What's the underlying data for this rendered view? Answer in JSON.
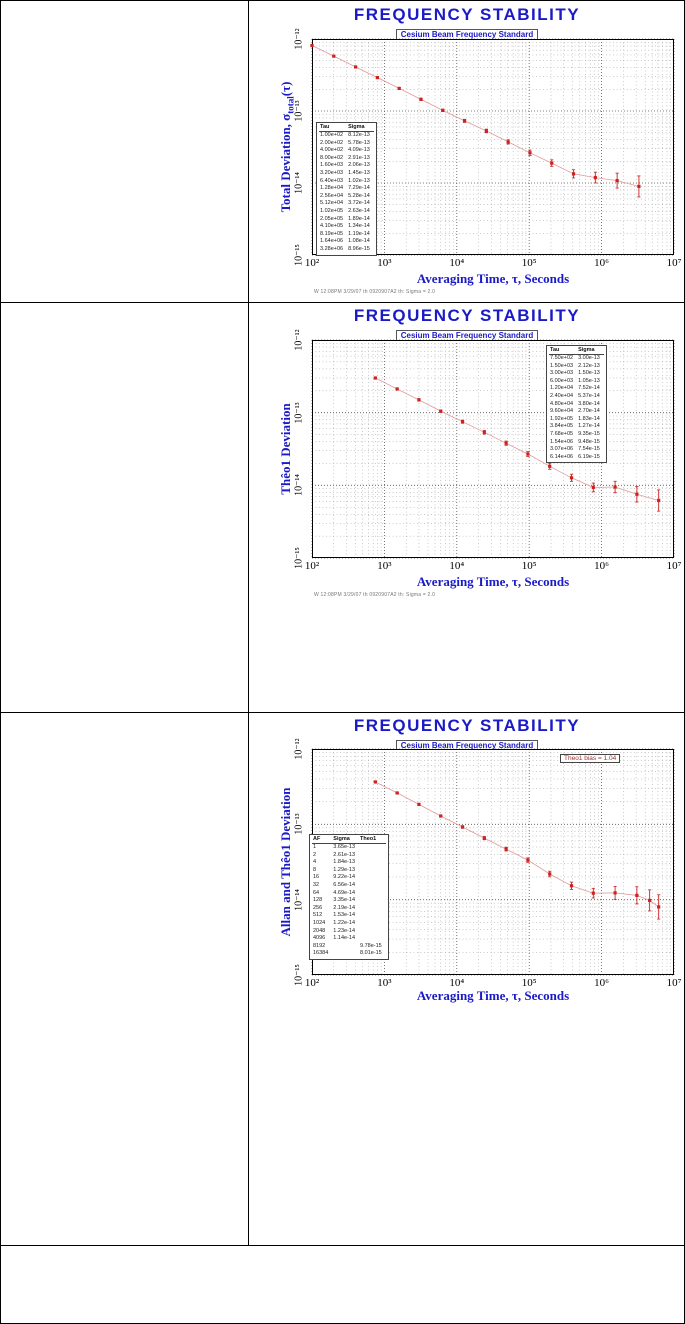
{
  "page": {
    "background": "#ffffff",
    "border_color": "#000000",
    "accent_blue": "#1a1ac6",
    "data_red": "#cc2222"
  },
  "chart_data": [
    {
      "type": "line",
      "scale": "log-log",
      "title": "FREQUENCY STABILITY",
      "subtitle": "Cesium Beam Frequency Standard",
      "xlabel": "Averaging Time, τ, Seconds",
      "ylabel": "Total Deviation, σtotal(τ)",
      "ylabel_parts": {
        "pre": "Total Deviation, σ",
        "sub": "total",
        "post": "(τ)"
      },
      "footer_note": "W 12:08PM 3/29/07  th 0920907A2   th: Sigma = 2.0",
      "x_range": [
        100,
        10000000
      ],
      "y_range": [
        1e-15,
        1e-12
      ],
      "grid": "log dotted",
      "legend": "none",
      "x_ticks": [
        {
          "label": "10²",
          "value": 100
        },
        {
          "label": "10³",
          "value": 1000
        },
        {
          "label": "10⁴",
          "value": 10000
        },
        {
          "label": "10⁵",
          "value": 100000
        },
        {
          "label": "10⁶",
          "value": 1000000
        },
        {
          "label": "10⁷",
          "value": 10000000
        }
      ],
      "y_ticks": [
        {
          "label": "10⁻¹²",
          "value": 1e-12
        },
        {
          "label": "10⁻¹³",
          "value": 1e-13
        },
        {
          "label": "10⁻¹⁴",
          "value": 1e-14
        },
        {
          "label": "10⁻¹⁵",
          "value": 1e-15
        }
      ],
      "series": [
        {
          "name": "Total deviation",
          "marker": "square",
          "color": "#cc2222",
          "line_color": "#e09a9a",
          "points": [
            {
              "tau": 100,
              "sigma": 8.12e-13,
              "err": 0.02
            },
            {
              "tau": 200,
              "sigma": 5.78e-13,
              "err": 0.02
            },
            {
              "tau": 400,
              "sigma": 4.09e-13,
              "err": 0.02
            },
            {
              "tau": 800,
              "sigma": 2.91e-13,
              "err": 0.03
            },
            {
              "tau": 1600,
              "sigma": 2.06e-13,
              "err": 0.03
            },
            {
              "tau": 3200,
              "sigma": 1.45e-13,
              "err": 0.04
            },
            {
              "tau": 6400,
              "sigma": 1.02e-13,
              "err": 0.04
            },
            {
              "tau": 12800,
              "sigma": 7.29e-14,
              "err": 0.05
            },
            {
              "tau": 25600,
              "sigma": 5.28e-14,
              "err": 0.06
            },
            {
              "tau": 51200,
              "sigma": 3.72e-14,
              "err": 0.07
            },
            {
              "tau": 102400,
              "sigma": 2.63e-14,
              "err": 0.09
            },
            {
              "tau": 204800,
              "sigma": 1.89e-14,
              "err": 0.11
            },
            {
              "tau": 409600,
              "sigma": 1.34e-14,
              "err": 0.14
            },
            {
              "tau": 819200,
              "sigma": 1.19e-14,
              "err": 0.19
            },
            {
              "tau": 1638400,
              "sigma": 1.08e-14,
              "err": 0.27
            },
            {
              "tau": 3276800,
              "sigma": 8.96e-15,
              "err": 0.4
            }
          ]
        }
      ],
      "table": {
        "headers": [
          "Tau",
          "Sigma"
        ],
        "rows": [
          [
            "1.00e+02",
            "8.12e-13"
          ],
          [
            "2.00e+02",
            "5.78e-13"
          ],
          [
            "4.00e+02",
            "4.09e-13"
          ],
          [
            "8.00e+02",
            "2.91e-13"
          ],
          [
            "1.60e+03",
            "2.06e-13"
          ],
          [
            "3.20e+03",
            "1.45e-13"
          ],
          [
            "6.40e+03",
            "1.02e-13"
          ],
          [
            "1.28e+04",
            "7.29e-14"
          ],
          [
            "2.56e+04",
            "5.28e-14"
          ],
          [
            "5.12e+04",
            "3.72e-14"
          ],
          [
            "1.02e+05",
            "2.63e-14"
          ],
          [
            "2.05e+05",
            "1.89e-14"
          ],
          [
            "4.10e+05",
            "1.34e-14"
          ],
          [
            "8.19e+05",
            "1.19e-14"
          ],
          [
            "1.64e+06",
            "1.08e-14"
          ],
          [
            "3.28e+06",
            "8.96e-15"
          ]
        ]
      }
    },
    {
      "type": "line",
      "scale": "log-log",
      "title": "FREQUENCY STABILITY",
      "subtitle": "Cesium Beam Frequency Standard",
      "xlabel": "Averaging Time, τ, Seconds",
      "ylabel": "Thêo1 Deviation",
      "footer_note": "W 12:08PM 3/29/07  th 0920907A2   th: Sigma = 2.0",
      "x_range": [
        100,
        10000000
      ],
      "y_range": [
        1e-15,
        1e-12
      ],
      "grid": "log dotted",
      "legend": "none",
      "x_ticks": [
        {
          "label": "10²",
          "value": 100
        },
        {
          "label": "10³",
          "value": 1000
        },
        {
          "label": "10⁴",
          "value": 10000
        },
        {
          "label": "10⁵",
          "value": 100000
        },
        {
          "label": "10⁶",
          "value": 1000000
        },
        {
          "label": "10⁷",
          "value": 10000000
        }
      ],
      "y_ticks": [
        {
          "label": "10⁻¹²",
          "value": 1e-12
        },
        {
          "label": "10⁻¹³",
          "value": 1e-13
        },
        {
          "label": "10⁻¹⁴",
          "value": 1e-14
        },
        {
          "label": "10⁻¹⁵",
          "value": 1e-15
        }
      ],
      "series": [
        {
          "name": "Theo1 deviation",
          "marker": "square",
          "color": "#cc2222",
          "line_color": "#e09a9a",
          "points": [
            {
              "tau": 750,
              "sigma": 3e-13,
              "err": 0.03
            },
            {
              "tau": 1500,
              "sigma": 2.12e-13,
              "err": 0.03
            },
            {
              "tau": 3000,
              "sigma": 1.5e-13,
              "err": 0.04
            },
            {
              "tau": 6000,
              "sigma": 1.05e-13,
              "err": 0.04
            },
            {
              "tau": 12000,
              "sigma": 7.52e-14,
              "err": 0.05
            },
            {
              "tau": 24000,
              "sigma": 5.37e-14,
              "err": 0.06
            },
            {
              "tau": 48000,
              "sigma": 3.8e-14,
              "err": 0.07
            },
            {
              "tau": 96000,
              "sigma": 2.7e-14,
              "err": 0.08
            },
            {
              "tau": 192000,
              "sigma": 1.83e-14,
              "err": 0.1
            },
            {
              "tau": 384000,
              "sigma": 1.27e-14,
              "err": 0.12
            },
            {
              "tau": 768000,
              "sigma": 9.35e-15,
              "err": 0.15
            },
            {
              "tau": 1536000,
              "sigma": 9.48e-15,
              "err": 0.2
            },
            {
              "tau": 3072000,
              "sigma": 7.54e-15,
              "err": 0.28
            },
            {
              "tau": 6144000,
              "sigma": 6.19e-15,
              "err": 0.4
            }
          ]
        }
      ],
      "table": {
        "headers": [
          "Tau",
          "Sigma"
        ],
        "rows": [
          [
            "7.50e+02",
            "3.00e-13"
          ],
          [
            "1.50e+03",
            "2.12e-13"
          ],
          [
            "3.00e+03",
            "1.50e-13"
          ],
          [
            "6.00e+03",
            "1.05e-13"
          ],
          [
            "1.20e+04",
            "7.52e-14"
          ],
          [
            "2.40e+04",
            "5.37e-14"
          ],
          [
            "4.80e+04",
            "3.80e-14"
          ],
          [
            "9.60e+04",
            "2.70e-14"
          ],
          [
            "1.92e+05",
            "1.83e-14"
          ],
          [
            "3.84e+05",
            "1.27e-14"
          ],
          [
            "7.68e+05",
            "9.35e-15"
          ],
          [
            "1.54e+06",
            "9.48e-15"
          ],
          [
            "3.07e+06",
            "7.54e-15"
          ],
          [
            "6.14e+06",
            "6.19e-15"
          ]
        ]
      }
    },
    {
      "type": "line",
      "scale": "log-log",
      "title": "FREQUENCY STABILITY",
      "subtitle": "Cesium Beam Frequency Standard",
      "xlabel": "Averaging Time, τ, Seconds",
      "ylabel": "Allan and Thêo1 Deviation",
      "annotation": "Theo1 bias = 1.04",
      "x_range": [
        100,
        10000000
      ],
      "y_range": [
        1e-15,
        1e-12
      ],
      "grid": "log dotted",
      "legend": "none",
      "x_ticks": [
        {
          "label": "10²",
          "value": 100
        },
        {
          "label": "10³",
          "value": 1000
        },
        {
          "label": "10⁴",
          "value": 10000
        },
        {
          "label": "10⁵",
          "value": 100000
        },
        {
          "label": "10⁶",
          "value": 1000000
        },
        {
          "label": "10⁷",
          "value": 10000000
        }
      ],
      "y_ticks": [
        {
          "label": "10⁻¹²",
          "value": 1e-12
        },
        {
          "label": "10⁻¹³",
          "value": 1e-13
        },
        {
          "label": "10⁻¹⁴",
          "value": 1e-14
        },
        {
          "label": "10⁻¹⁵",
          "value": 1e-15
        }
      ],
      "series": [
        {
          "name": "Allan and Theo1 deviation",
          "marker": "square",
          "color": "#cc2222",
          "line_color": "#e09a9a",
          "points": [
            {
              "tau": 750,
              "sigma": 3.65e-13,
              "err": 0.02
            },
            {
              "tau": 1500,
              "sigma": 2.61e-13,
              "err": 0.02
            },
            {
              "tau": 3000,
              "sigma": 1.84e-13,
              "err": 0.03
            },
            {
              "tau": 6000,
              "sigma": 1.29e-13,
              "err": 0.03
            },
            {
              "tau": 12000,
              "sigma": 9.22e-14,
              "err": 0.04
            },
            {
              "tau": 24000,
              "sigma": 6.56e-14,
              "err": 0.05
            },
            {
              "tau": 48000,
              "sigma": 4.69e-14,
              "err": 0.06
            },
            {
              "tau": 96000,
              "sigma": 3.35e-14,
              "err": 0.07
            },
            {
              "tau": 192000,
              "sigma": 2.19e-14,
              "err": 0.09
            },
            {
              "tau": 384000,
              "sigma": 1.53e-14,
              "err": 0.12
            },
            {
              "tau": 768000,
              "sigma": 1.22e-14,
              "err": 0.16
            },
            {
              "tau": 1536000,
              "sigma": 1.23e-14,
              "err": 0.22
            },
            {
              "tau": 3072000,
              "sigma": 1.14e-14,
              "err": 0.3
            },
            {
              "tau": 4608000,
              "sigma": 9.78e-15,
              "err": 0.38
            },
            {
              "tau": 6144000,
              "sigma": 8.01e-15,
              "err": 0.45
            }
          ]
        }
      ],
      "table": {
        "headers": [
          "AF",
          "Sigma",
          "Theo1"
        ],
        "rows": [
          [
            "1",
            "3.65e-13",
            ""
          ],
          [
            "2",
            "2.61e-13",
            ""
          ],
          [
            "4",
            "1.84e-13",
            ""
          ],
          [
            "8",
            "1.29e-13",
            ""
          ],
          [
            "16",
            "9.22e-14",
            ""
          ],
          [
            "32",
            "6.56e-14",
            ""
          ],
          [
            "64",
            "4.69e-14",
            ""
          ],
          [
            "128",
            "3.35e-14",
            ""
          ],
          [
            "256",
            "2.19e-14",
            ""
          ],
          [
            "512",
            "1.53e-14",
            ""
          ],
          [
            "1024",
            "1.22e-14",
            ""
          ],
          [
            "2048",
            "1.23e-14",
            ""
          ],
          [
            "4096",
            "1.14e-14",
            ""
          ],
          [
            "8192",
            "",
            "9.78e-15"
          ],
          [
            "16384",
            "",
            "8.01e-15"
          ]
        ]
      }
    }
  ]
}
